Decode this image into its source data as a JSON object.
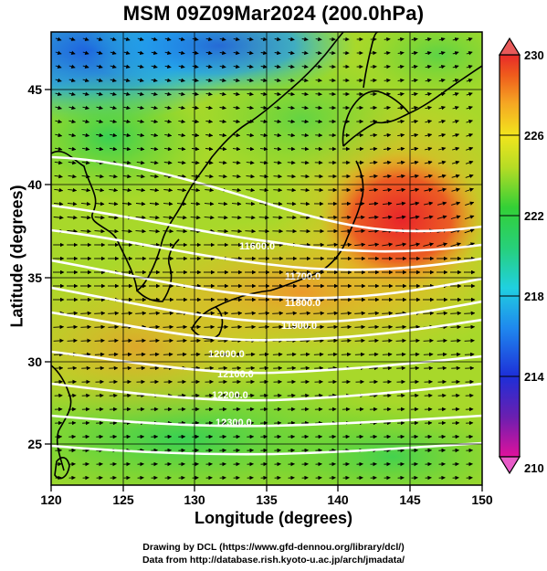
{
  "title": "MSM 09Z09Mar2024 (200.0hPa)",
  "axes": {
    "xlabel": "Longitude (degrees)",
    "ylabel": "Latitude  (degrees)",
    "x_ticks": [
      120,
      125,
      130,
      135,
      140,
      145,
      150
    ],
    "y_ticks": [
      25,
      30,
      35,
      40,
      45
    ],
    "xlim": [
      120,
      150
    ],
    "ylim": [
      22.4,
      47.6
    ]
  },
  "colorbar": {
    "ticks": [
      230,
      226,
      222,
      218,
      214,
      210
    ],
    "min": 210,
    "max": 230,
    "stops": [
      "#e0119c",
      "#6a1fb0",
      "#1d2fd8",
      "#1f88ee",
      "#20d0e0",
      "#27d07a",
      "#33d036",
      "#b6dc25",
      "#f2e51d",
      "#f5a623",
      "#ef5b1c",
      "#e82a2a"
    ]
  },
  "contours": {
    "labels": [
      "11600.0",
      "11700.0",
      "11800.0",
      "11900.0",
      "12000.0",
      "12100.0",
      "12200.0",
      "12300.0"
    ],
    "color": "#ffffff"
  },
  "credits": {
    "line1": "Drawing by DCL (https://www.gfd-dennou.org/library/dcl/)",
    "line2": "Data from http://database.rish.kyoto-u.ac.jp/arch/jmadata/"
  }
}
